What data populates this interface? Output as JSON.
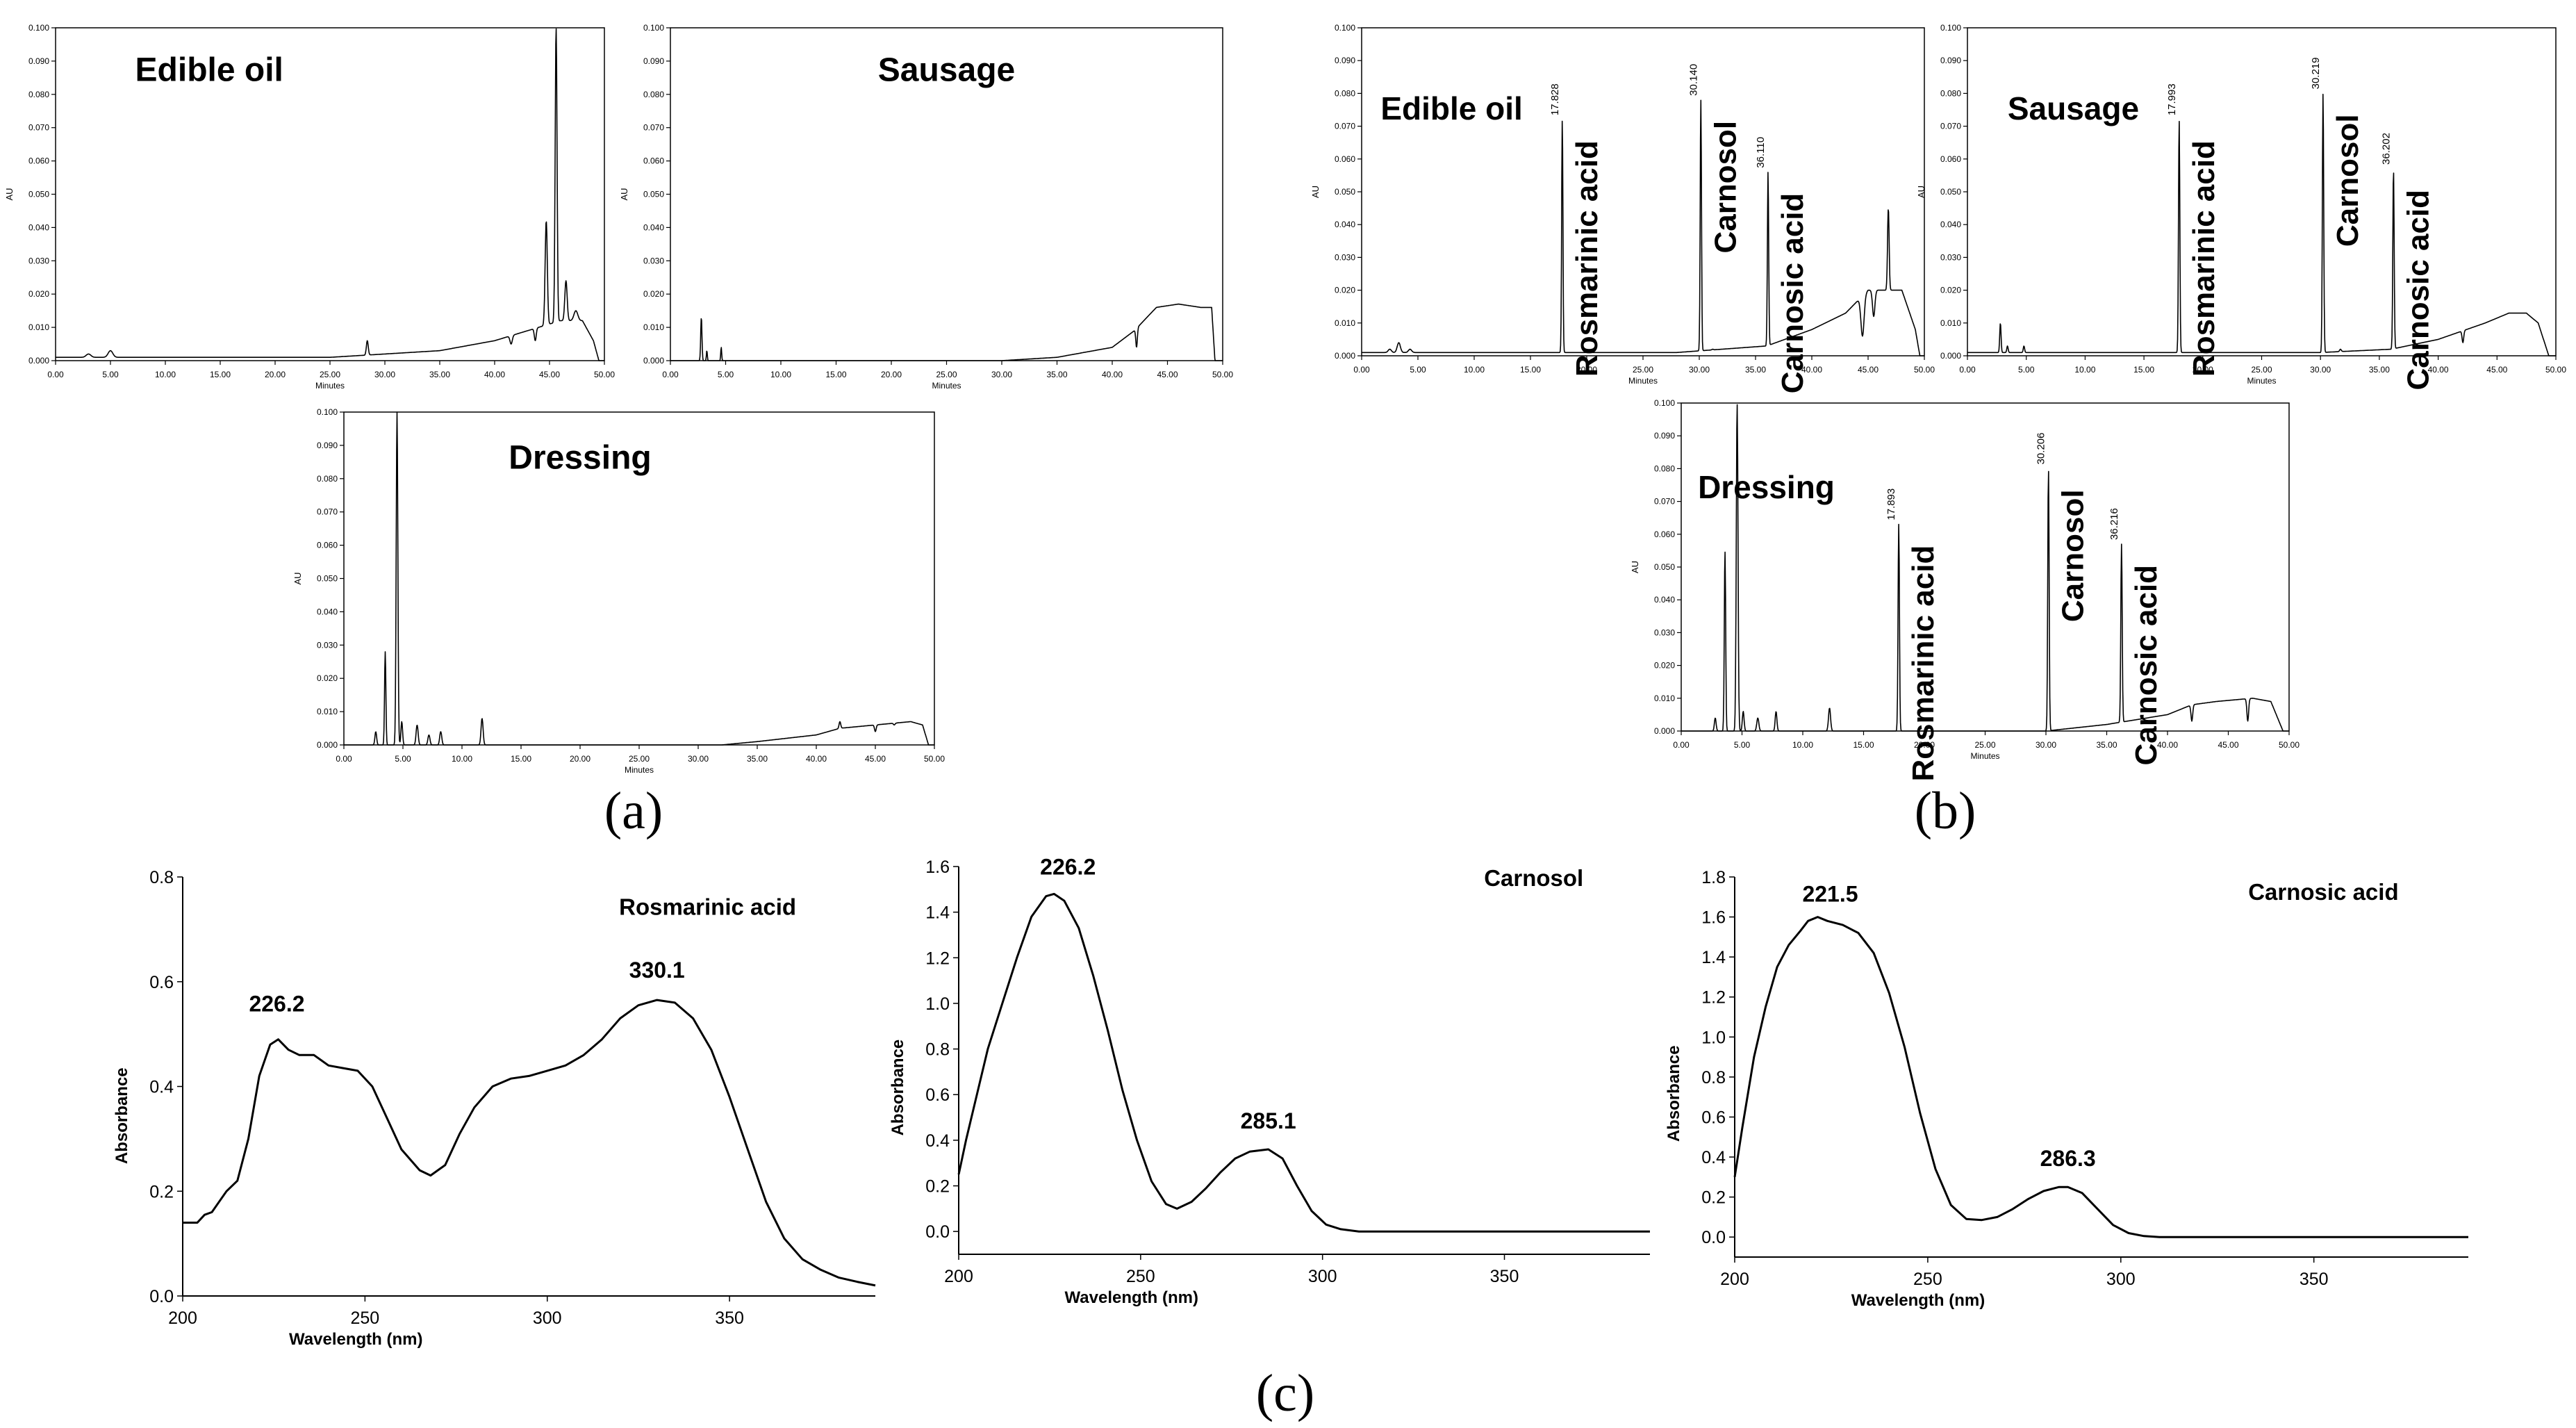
{
  "panel_labels": {
    "a": "(a)",
    "b": "(b)",
    "c": "(c)"
  },
  "chromatogram_common": {
    "xlabel": "Minutes",
    "ylabel": "AU",
    "xticks": [
      "0.00",
      "5.00",
      "10.00",
      "15.00",
      "20.00",
      "25.00",
      "30.00",
      "35.00",
      "40.00",
      "45.00",
      "50.00"
    ],
    "yticks": [
      "0.000",
      "0.010",
      "0.020",
      "0.030",
      "0.040",
      "0.050",
      "0.060",
      "0.070",
      "0.080",
      "0.090",
      "0.100"
    ]
  },
  "chart_data": [
    {
      "id": "a_edible_oil",
      "type": "line",
      "title": "Edible oil",
      "xlim": [
        0,
        50
      ],
      "ylim": [
        0,
        0.1
      ],
      "baseline": [
        [
          0,
          0.001
        ],
        [
          25,
          0.001
        ],
        [
          30,
          0.002
        ],
        [
          35,
          0.003
        ],
        [
          40,
          0.006
        ],
        [
          43,
          0.009
        ],
        [
          46,
          0.012
        ],
        [
          48,
          0.012
        ],
        [
          49,
          0.006
        ],
        [
          49.5,
          0.0
        ]
      ],
      "peaks": [
        [
          3,
          0.002,
          0.3
        ],
        [
          5,
          0.003,
          0.3
        ],
        [
          28.4,
          0.006,
          0.12
        ],
        [
          41.5,
          0.005,
          0.15
        ],
        [
          43.7,
          0.006,
          0.12
        ],
        [
          44.7,
          0.042,
          0.14
        ],
        [
          45.6,
          0.1,
          0.12
        ],
        [
          46.5,
          0.024,
          0.15
        ],
        [
          47.4,
          0.015,
          0.25
        ]
      ],
      "labels": []
    },
    {
      "id": "a_sausage",
      "type": "line",
      "title": "Sausage",
      "xlim": [
        0,
        50
      ],
      "ylim": [
        0,
        0.1
      ],
      "baseline": [
        [
          0,
          0.0
        ],
        [
          30,
          0.0
        ],
        [
          35,
          0.001
        ],
        [
          40,
          0.004
        ],
        [
          42,
          0.009
        ],
        [
          44,
          0.016
        ],
        [
          46,
          0.017
        ],
        [
          48,
          0.016
        ],
        [
          49,
          0.016
        ],
        [
          49.3,
          0.0
        ]
      ],
      "peaks": [
        [
          2.8,
          0.013,
          0.08
        ],
        [
          3.3,
          0.003,
          0.06
        ],
        [
          4.6,
          0.004,
          0.06
        ],
        [
          42.2,
          0.004,
          0.1
        ]
      ],
      "labels": []
    },
    {
      "id": "a_dressing",
      "type": "line",
      "title": "Dressing",
      "xlim": [
        0,
        50
      ],
      "ylim": [
        0,
        0.1
      ],
      "baseline": [
        [
          0,
          0.0
        ],
        [
          32,
          0.0
        ],
        [
          35,
          0.001
        ],
        [
          40,
          0.003
        ],
        [
          42,
          0.005
        ],
        [
          45,
          0.006
        ],
        [
          48,
          0.007
        ],
        [
          49,
          0.006
        ],
        [
          49.5,
          0.0
        ]
      ],
      "peaks": [
        [
          2.7,
          0.004,
          0.1
        ],
        [
          3.5,
          0.028,
          0.08
        ],
        [
          4.5,
          0.1,
          0.1
        ],
        [
          4.9,
          0.007,
          0.1
        ],
        [
          6.2,
          0.006,
          0.12
        ],
        [
          7.2,
          0.003,
          0.12
        ],
        [
          8.2,
          0.004,
          0.12
        ],
        [
          11.7,
          0.008,
          0.12
        ],
        [
          42,
          0.007,
          0.1
        ],
        [
          45,
          0.004,
          0.1
        ],
        [
          46.6,
          0.006,
          0.1
        ]
      ],
      "labels": []
    },
    {
      "id": "b_edible_oil",
      "type": "line",
      "title": "Edible oil",
      "xlim": [
        0,
        50
      ],
      "ylim": [
        0,
        0.1
      ],
      "baseline": [
        [
          0,
          0.001
        ],
        [
          28,
          0.001
        ],
        [
          32,
          0.002
        ],
        [
          36,
          0.003
        ],
        [
          40,
          0.008
        ],
        [
          43,
          0.013
        ],
        [
          45,
          0.02
        ],
        [
          46,
          0.02
        ],
        [
          48,
          0.02
        ],
        [
          49.2,
          0.008
        ],
        [
          49.6,
          0.0
        ]
      ],
      "peaks": [
        [
          2.5,
          0.002,
          0.2
        ],
        [
          3.3,
          0.004,
          0.2
        ],
        [
          4.3,
          0.002,
          0.2
        ],
        [
          17.828,
          0.072,
          0.08
        ],
        [
          30.14,
          0.078,
          0.08
        ],
        [
          31.2,
          0.002,
          0.1
        ],
        [
          36.11,
          0.056,
          0.08
        ],
        [
          44.5,
          0.006,
          0.2
        ],
        [
          45.5,
          0.012,
          0.15
        ],
        [
          46.8,
          0.045,
          0.1
        ],
        [
          47.7,
          0.02,
          0.15
        ]
      ],
      "labels": [
        {
          "peak_x": 17.828,
          "rt": "17.828",
          "compound": "Rosmarinic acid"
        },
        {
          "peak_x": 30.14,
          "rt": "30.140",
          "compound": "Carnosol"
        },
        {
          "peak_x": 36.11,
          "rt": "36.110",
          "compound": "Carnosic acid"
        }
      ]
    },
    {
      "id": "b_sausage",
      "type": "line",
      "title": "Sausage",
      "xlim": [
        0,
        50
      ],
      "ylim": [
        0,
        0.1
      ],
      "baseline": [
        [
          0,
          0.001
        ],
        [
          30,
          0.001
        ],
        [
          36,
          0.002
        ],
        [
          40,
          0.005
        ],
        [
          44,
          0.01
        ],
        [
          46,
          0.013
        ],
        [
          47.5,
          0.013
        ],
        [
          48.5,
          0.01
        ],
        [
          49.4,
          0.0
        ]
      ],
      "peaks": [
        [
          2.8,
          0.01,
          0.08
        ],
        [
          3.4,
          0.003,
          0.08
        ],
        [
          4.8,
          0.003,
          0.08
        ],
        [
          17.993,
          0.072,
          0.08
        ],
        [
          30.219,
          0.08,
          0.08
        ],
        [
          31.7,
          0.002,
          0.1
        ],
        [
          36.202,
          0.057,
          0.08
        ],
        [
          42.1,
          0.004,
          0.1
        ]
      ],
      "labels": [
        {
          "peak_x": 17.993,
          "rt": "17.993",
          "compound": "Rosmarinic acid"
        },
        {
          "peak_x": 30.219,
          "rt": "30.219",
          "compound": "Carnosol"
        },
        {
          "peak_x": 36.202,
          "rt": "36.202",
          "compound": "Carnosic acid"
        }
      ]
    },
    {
      "id": "b_dressing",
      "type": "line",
      "title": "Dressing",
      "xlim": [
        0,
        50
      ],
      "ylim": [
        0,
        0.1
      ],
      "baseline": [
        [
          0,
          0.0
        ],
        [
          30,
          0.0
        ],
        [
          35,
          0.002
        ],
        [
          40,
          0.005
        ],
        [
          42,
          0.008
        ],
        [
          44,
          0.009
        ],
        [
          47,
          0.01
        ],
        [
          48.5,
          0.009
        ],
        [
          49.5,
          0.0
        ]
      ],
      "peaks": [
        [
          2.8,
          0.004,
          0.1
        ],
        [
          3.6,
          0.055,
          0.08
        ],
        [
          4.6,
          0.1,
          0.1
        ],
        [
          5.1,
          0.006,
          0.1
        ],
        [
          6.3,
          0.004,
          0.12
        ],
        [
          7.8,
          0.006,
          0.1
        ],
        [
          12.2,
          0.007,
          0.12
        ],
        [
          17.893,
          0.063,
          0.08
        ],
        [
          30.206,
          0.08,
          0.08
        ],
        [
          36.216,
          0.057,
          0.08
        ],
        [
          42,
          0.003,
          0.1
        ],
        [
          46.6,
          0.003,
          0.1
        ]
      ],
      "labels": [
        {
          "peak_x": 17.893,
          "rt": "17.893",
          "compound": "Rosmarinic acid"
        },
        {
          "peak_x": 30.206,
          "rt": "30.206",
          "compound": "Carnosol"
        },
        {
          "peak_x": 36.216,
          "rt": "36.216",
          "compound": "Carnosic acid"
        }
      ]
    },
    {
      "id": "c_rosmarinic",
      "type": "line",
      "title": "Rosmarinic acid",
      "xlabel": "Wavelength (nm)",
      "ylabel": "Absorbance",
      "xlim": [
        200,
        390
      ],
      "ylim": [
        0,
        0.8
      ],
      "xticks": [
        "200",
        "250",
        "300",
        "350"
      ],
      "xtick_values": [
        200,
        250,
        300,
        350
      ],
      "yticks": [
        "0.0",
        "0.2",
        "0.4",
        "0.6",
        "0.8"
      ],
      "ytick_values": [
        0,
        0.2,
        0.4,
        0.6,
        0.8
      ],
      "points": [
        [
          200,
          0.14
        ],
        [
          204,
          0.14
        ],
        [
          206,
          0.155
        ],
        [
          208,
          0.16
        ],
        [
          210,
          0.18
        ],
        [
          212,
          0.2
        ],
        [
          215,
          0.22
        ],
        [
          218,
          0.3
        ],
        [
          221,
          0.42
        ],
        [
          224,
          0.48
        ],
        [
          226.2,
          0.49
        ],
        [
          229,
          0.47
        ],
        [
          232,
          0.46
        ],
        [
          236,
          0.46
        ],
        [
          240,
          0.44
        ],
        [
          244,
          0.435
        ],
        [
          248,
          0.43
        ],
        [
          252,
          0.4
        ],
        [
          256,
          0.34
        ],
        [
          260,
          0.28
        ],
        [
          265,
          0.24
        ],
        [
          268,
          0.23
        ],
        [
          272,
          0.25
        ],
        [
          276,
          0.31
        ],
        [
          280,
          0.36
        ],
        [
          285,
          0.4
        ],
        [
          290,
          0.415
        ],
        [
          295,
          0.42
        ],
        [
          300,
          0.43
        ],
        [
          305,
          0.44
        ],
        [
          310,
          0.46
        ],
        [
          315,
          0.49
        ],
        [
          320,
          0.53
        ],
        [
          325,
          0.555
        ],
        [
          330.1,
          0.565
        ],
        [
          335,
          0.56
        ],
        [
          340,
          0.53
        ],
        [
          345,
          0.47
        ],
        [
          350,
          0.38
        ],
        [
          355,
          0.28
        ],
        [
          360,
          0.18
        ],
        [
          365,
          0.11
        ],
        [
          370,
          0.07
        ],
        [
          375,
          0.05
        ],
        [
          380,
          0.035
        ],
        [
          385,
          0.027
        ],
        [
          390,
          0.02
        ]
      ],
      "annotations": [
        {
          "x": 226.2,
          "text": "226.2"
        },
        {
          "x": 330.1,
          "text": "330.1"
        }
      ]
    },
    {
      "id": "c_carnosol",
      "type": "line",
      "title": "Carnosol",
      "xlabel": "Wavelength (nm)",
      "ylabel": "Absorbance",
      "xlim": [
        200,
        390
      ],
      "ylim": [
        -0.1,
        1.6
      ],
      "xticks": [
        "200",
        "250",
        "300",
        "350"
      ],
      "xtick_values": [
        200,
        250,
        300,
        350
      ],
      "yticks": [
        "0.0",
        "0.2",
        "0.4",
        "0.6",
        "0.8",
        "1.0",
        "1.2",
        "1.4",
        "1.6"
      ],
      "ytick_values": [
        0,
        0.2,
        0.4,
        0.6,
        0.8,
        1.0,
        1.2,
        1.4,
        1.6
      ],
      "points": [
        [
          200,
          0.25
        ],
        [
          202,
          0.4
        ],
        [
          205,
          0.6
        ],
        [
          208,
          0.8
        ],
        [
          212,
          1.0
        ],
        [
          216,
          1.2
        ],
        [
          220,
          1.38
        ],
        [
          224,
          1.47
        ],
        [
          226.2,
          1.48
        ],
        [
          229,
          1.45
        ],
        [
          233,
          1.33
        ],
        [
          237,
          1.12
        ],
        [
          241,
          0.88
        ],
        [
          245,
          0.62
        ],
        [
          249,
          0.4
        ],
        [
          253,
          0.22
        ],
        [
          257,
          0.12
        ],
        [
          260,
          0.1
        ],
        [
          264,
          0.13
        ],
        [
          268,
          0.19
        ],
        [
          272,
          0.26
        ],
        [
          276,
          0.32
        ],
        [
          280,
          0.35
        ],
        [
          285.1,
          0.36
        ],
        [
          289,
          0.32
        ],
        [
          293,
          0.2
        ],
        [
          297,
          0.09
        ],
        [
          301,
          0.03
        ],
        [
          305,
          0.01
        ],
        [
          310,
          0.0
        ],
        [
          330,
          0.0
        ],
        [
          360,
          0.0
        ],
        [
          390,
          0.0
        ]
      ],
      "annotations": [
        {
          "x": 226.2,
          "text": "226.2"
        },
        {
          "x": 285.1,
          "text": "285.1"
        }
      ]
    },
    {
      "id": "c_carnosic",
      "type": "line",
      "title": "Carnosic acid",
      "xlabel": "Wavelength (nm)",
      "ylabel": "Absorbance",
      "xlim": [
        200,
        390
      ],
      "ylim": [
        -0.1,
        1.8
      ],
      "xticks": [
        "200",
        "250",
        "300",
        "350"
      ],
      "xtick_values": [
        200,
        250,
        300,
        350
      ],
      "yticks": [
        "0.0",
        "0.2",
        "0.4",
        "0.6",
        "0.8",
        "1.0",
        "1.2",
        "1.4",
        "1.6",
        "1.8"
      ],
      "ytick_values": [
        0,
        0.2,
        0.4,
        0.6,
        0.8,
        1.0,
        1.2,
        1.4,
        1.6,
        1.8
      ],
      "points": [
        [
          200,
          0.3
        ],
        [
          202,
          0.55
        ],
        [
          205,
          0.9
        ],
        [
          208,
          1.15
        ],
        [
          211,
          1.35
        ],
        [
          214,
          1.46
        ],
        [
          217,
          1.53
        ],
        [
          219,
          1.58
        ],
        [
          221.5,
          1.6
        ],
        [
          224,
          1.58
        ],
        [
          228,
          1.56
        ],
        [
          232,
          1.52
        ],
        [
          236,
          1.42
        ],
        [
          240,
          1.22
        ],
        [
          244,
          0.95
        ],
        [
          248,
          0.62
        ],
        [
          252,
          0.34
        ],
        [
          256,
          0.16
        ],
        [
          260,
          0.09
        ],
        [
          264,
          0.085
        ],
        [
          268,
          0.1
        ],
        [
          272,
          0.14
        ],
        [
          276,
          0.19
        ],
        [
          280,
          0.23
        ],
        [
          284,
          0.25
        ],
        [
          286.3,
          0.25
        ],
        [
          290,
          0.22
        ],
        [
          294,
          0.14
        ],
        [
          298,
          0.06
        ],
        [
          302,
          0.02
        ],
        [
          306,
          0.005
        ],
        [
          310,
          0.0
        ],
        [
          340,
          0.0
        ],
        [
          390,
          0.0
        ]
      ],
      "annotations": [
        {
          "x": 221.5,
          "text": "221.5"
        },
        {
          "x": 286.3,
          "text": "286.3"
        }
      ]
    }
  ]
}
